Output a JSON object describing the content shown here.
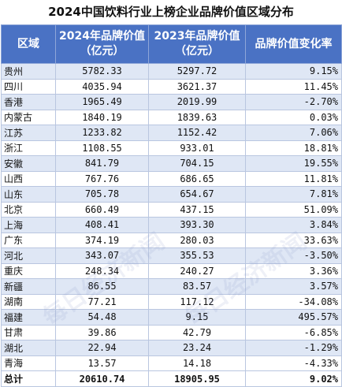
{
  "title": "2024中国饮料行业上榜企业品牌价值区域分布",
  "headers": {
    "region": "区域",
    "y2024_l1": "2024年品牌价值",
    "y2024_l2": "（亿元）",
    "y2023_l1": "2023年品牌价值",
    "y2023_l2": "（亿元）",
    "change": "品牌价值变化率"
  },
  "rows": [
    {
      "region": "贵州",
      "v2024": "5782.33",
      "v2023": "5297.72",
      "change": "9.15%"
    },
    {
      "region": "四川",
      "v2024": "4035.94",
      "v2023": "3621.37",
      "change": "11.45%"
    },
    {
      "region": "香港",
      "v2024": "1965.49",
      "v2023": "2019.99",
      "change": "-2.70%"
    },
    {
      "region": "内蒙古",
      "v2024": "1840.19",
      "v2023": "1839.63",
      "change": "0.03%"
    },
    {
      "region": "江苏",
      "v2024": "1233.82",
      "v2023": "1152.42",
      "change": "7.06%"
    },
    {
      "region": "浙江",
      "v2024": "1108.55",
      "v2023": "933.01",
      "change": "18.81%"
    },
    {
      "region": "安徽",
      "v2024": "841.79",
      "v2023": "704.15",
      "change": "19.55%"
    },
    {
      "region": "山西",
      "v2024": "767.76",
      "v2023": "686.65",
      "change": "11.81%"
    },
    {
      "region": "山东",
      "v2024": "705.78",
      "v2023": "654.67",
      "change": "7.81%"
    },
    {
      "region": "北京",
      "v2024": "660.49",
      "v2023": "437.15",
      "change": "51.09%"
    },
    {
      "region": "上海",
      "v2024": "408.41",
      "v2023": "393.30",
      "change": "3.84%"
    },
    {
      "region": "广东",
      "v2024": "374.19",
      "v2023": "280.03",
      "change": "33.63%"
    },
    {
      "region": "河北",
      "v2024": "343.07",
      "v2023": "355.53",
      "change": "-3.50%"
    },
    {
      "region": "重庆",
      "v2024": "248.34",
      "v2023": "240.27",
      "change": "3.36%"
    },
    {
      "region": "新疆",
      "v2024": "86.55",
      "v2023": "83.57",
      "change": "3.57%"
    },
    {
      "region": "湖南",
      "v2024": "77.21",
      "v2023": "117.12",
      "change": "-34.08%"
    },
    {
      "region": "福建",
      "v2024": "54.48",
      "v2023": "9.15",
      "change": "495.57%"
    },
    {
      "region": "甘肃",
      "v2024": "39.86",
      "v2023": "42.79",
      "change": "-6.85%"
    },
    {
      "region": "湖北",
      "v2024": "22.94",
      "v2023": "23.24",
      "change": "-1.29%"
    },
    {
      "region": "青海",
      "v2024": "13.57",
      "v2023": "14.18",
      "change": "-4.33%"
    }
  ],
  "total": {
    "region": "总计",
    "v2024": "20610.74",
    "v2023": "18905.95",
    "change": "9.02%"
  },
  "watermark": "每日经济新闻",
  "colors": {
    "header_bg": "#4a72c4",
    "band": "#dfe7f5"
  }
}
